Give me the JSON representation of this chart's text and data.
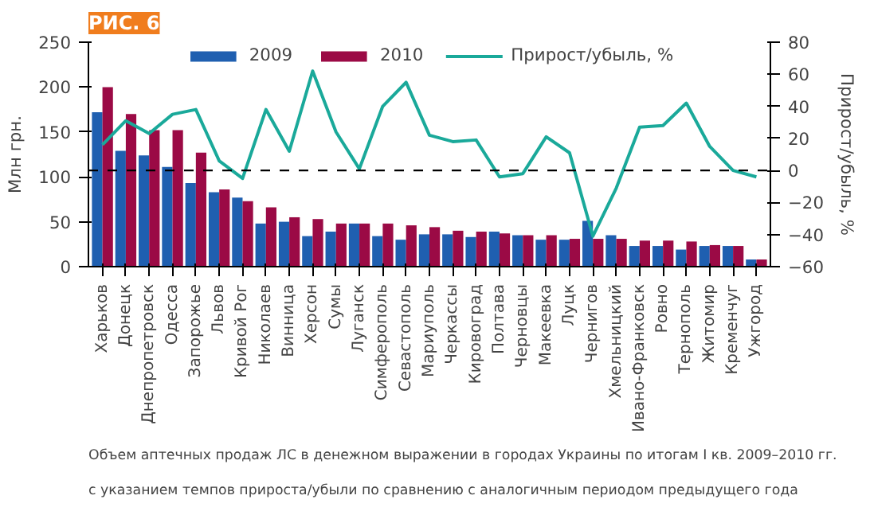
{
  "chart_data": {
    "type": "bar",
    "title": "РИС. 6",
    "ylabel": "Млн грн.",
    "y2label": "Прирост/убыль, %",
    "categories": [
      "Харьков",
      "Донецк",
      "Днепропетровск",
      "Одесса",
      "Запорожье",
      "Львов",
      "Кривой Рог",
      "Николаев",
      "Винница",
      "Херсон",
      "Сумы",
      "Луганск",
      "Симферополь",
      "Севастополь",
      "Мариуполь",
      "Черкассы",
      "Кировоград",
      "Полтава",
      "Черновцы",
      "Макеевка",
      "Луцк",
      "Чернигов",
      "Хмельницкий",
      "Ивано-Франковск",
      "Ровно",
      "Тернополь",
      "Житомир",
      "Кременчуг",
      "Ужгород"
    ],
    "series": [
      {
        "name": "2009",
        "color": "#1f5fb0",
        "values": [
          172,
          129,
          124,
          111,
          93,
          83,
          77,
          48,
          50,
          34,
          39,
          48,
          34,
          30,
          36,
          36,
          33,
          39,
          35,
          30,
          30,
          51,
          35,
          23,
          23,
          19,
          23,
          23,
          8
        ]
      },
      {
        "name": "2010",
        "color": "#9b0a45",
        "values": [
          200,
          170,
          152,
          152,
          127,
          86,
          73,
          66,
          55,
          53,
          48,
          48,
          48,
          46,
          44,
          40,
          39,
          37,
          35,
          35,
          31,
          31,
          31,
          29,
          29,
          28,
          24,
          23,
          8
        ]
      },
      {
        "name": "Прирост/убыль, %",
        "type": "line",
        "axis": "y2",
        "color": "#1aa99a",
        "values": [
          16,
          31,
          23,
          35,
          38,
          6,
          -5,
          38,
          12,
          62,
          24,
          1,
          40,
          55,
          22,
          18,
          19,
          -4,
          -2,
          21,
          11,
          -41,
          -11,
          27,
          28,
          42,
          15,
          0,
          -4
        ]
      }
    ],
    "ylim": [
      0,
      250
    ],
    "yticks": [
      0,
      50,
      100,
      150,
      200,
      250
    ],
    "y2lim": [
      -60,
      80
    ],
    "y2ticks": [
      -60,
      -40,
      -20,
      0,
      20,
      40,
      60,
      80
    ],
    "ref_lines": [
      {
        "axis": "y2",
        "value": 0,
        "color": "#000000",
        "line_style": "dashed"
      }
    ],
    "legend": "top",
    "grid": false,
    "annotations": [
      "Объем аптечных продаж ЛС в денежном выражении в городах Украины по итогам I кв. 2009–2010 гг.",
      "с указанием темпов прироста/убыли по сравнению с аналогичным периодом предыдущего года"
    ]
  }
}
